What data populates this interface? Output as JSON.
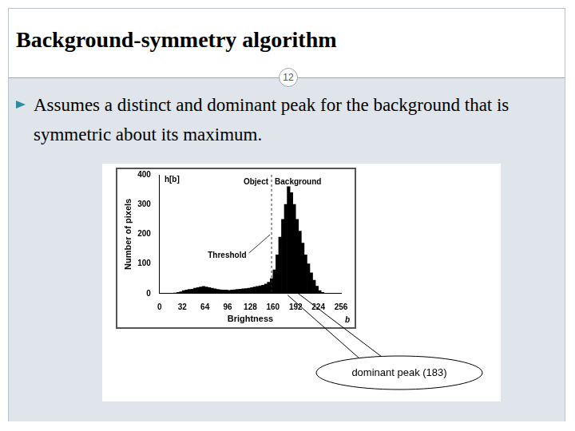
{
  "slide": {
    "title": "Background-symmetry algorithm",
    "page": 12,
    "bullet": "Assumes a distinct and dominant peak for the background that is symmetric about its maximum."
  },
  "chart_data": {
    "type": "histogram",
    "x_label": "Brightness",
    "y_label": "Number of pixels",
    "annotations": {
      "y_symbol": "h[b]",
      "x_symbol": "b",
      "object_label": "Object",
      "background_label": "Background",
      "threshold": {
        "x": 158,
        "label": "Threshold"
      },
      "peak": {
        "x": 183,
        "label": "dominant peak (183)"
      }
    },
    "bins": [
      0,
      4,
      8,
      12,
      16,
      20,
      24,
      28,
      32,
      36,
      40,
      44,
      48,
      52,
      56,
      60,
      64,
      68,
      72,
      76,
      80,
      84,
      88,
      92,
      96,
      100,
      104,
      108,
      112,
      116,
      120,
      124,
      128,
      132,
      136,
      140,
      144,
      148,
      152,
      156,
      160,
      164,
      168,
      172,
      176,
      180,
      184,
      188,
      192,
      196,
      200,
      204,
      208,
      212,
      216,
      220,
      224,
      228,
      232,
      236,
      240,
      244,
      248,
      252,
      256
    ],
    "values": [
      0,
      0,
      0,
      0,
      0,
      2,
      4,
      6,
      10,
      12,
      14,
      15,
      18,
      20,
      22,
      24,
      22,
      20,
      18,
      16,
      14,
      13,
      12,
      12,
      11,
      12,
      13,
      14,
      15,
      16,
      17,
      18,
      20,
      22,
      24,
      26,
      28,
      32,
      38,
      50,
      80,
      130,
      190,
      250,
      300,
      360,
      340,
      300,
      250,
      210,
      170,
      130,
      100,
      70,
      45,
      25,
      10,
      4,
      0,
      0,
      0,
      0,
      0,
      0
    ],
    "color": "#000000",
    "xlim": [
      0,
      256
    ],
    "ylim": [
      0,
      400
    ],
    "xticks": [
      0,
      32,
      64,
      96,
      128,
      160,
      192,
      224,
      256
    ],
    "yticks": [
      0,
      100,
      200,
      300,
      400
    ],
    "grid": false
  }
}
